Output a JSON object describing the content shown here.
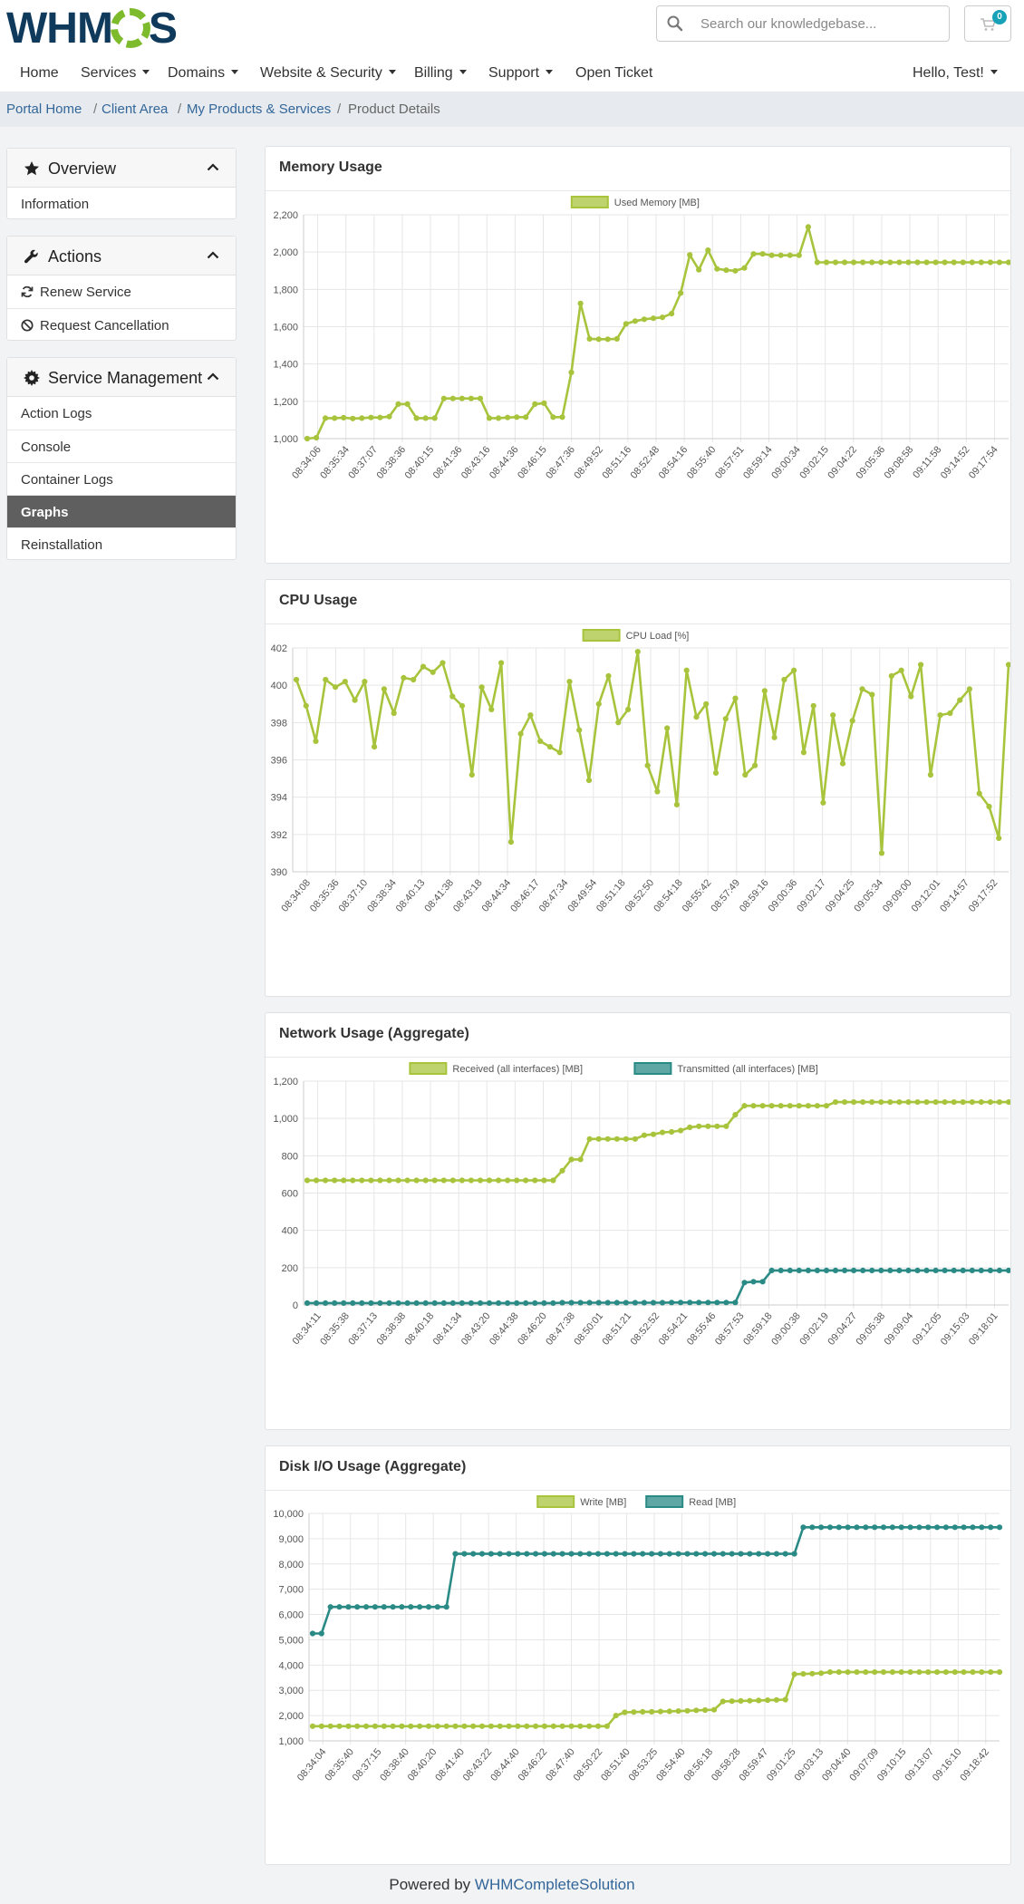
{
  "brand": {
    "logo_left": "WHM",
    "logo_right": "S"
  },
  "search": {
    "placeholder": "Search our knowledgebase..."
  },
  "cart": {
    "count": "0"
  },
  "nav": {
    "items": [
      "Home",
      "Services",
      "Domains",
      "Website & Security",
      "Billing",
      "Support",
      "Open Ticket"
    ],
    "user": "Hello, Test!"
  },
  "breadcrumb": [
    "Portal Home",
    "Client Area",
    "My Products & Services",
    "Product Details"
  ],
  "sidebar": {
    "overview": {
      "title": "Overview",
      "items": [
        "Information"
      ]
    },
    "actions": {
      "title": "Actions",
      "items": [
        "Renew Service",
        "Request Cancellation"
      ]
    },
    "service_management": {
      "title": "Service Management",
      "items": [
        "Action Logs",
        "Console",
        "Container Logs",
        "Graphs",
        "Reinstallation"
      ],
      "active": "Graphs"
    }
  },
  "colors": {
    "green": "#a8c43c",
    "teal": "#2a8a85",
    "link": "#336699"
  },
  "chart_data": [
    {
      "type": "line",
      "title": "Memory Usage",
      "ylim": [
        1000,
        2200
      ],
      "yticks": [
        "1,000",
        "1,200",
        "1,400",
        "1,600",
        "1,800",
        "2,000",
        "2,200"
      ],
      "xticks": [
        "08:34:06",
        "08:35:34",
        "08:37:07",
        "08:38:36",
        "08:40:15",
        "08:41:36",
        "08:43:16",
        "08:44:36",
        "08:46:15",
        "08:47:36",
        "08:49:52",
        "08:51:16",
        "08:52:48",
        "08:54:16",
        "08:55:40",
        "08:57:51",
        "08:59:14",
        "09:00:34",
        "09:02:15",
        "09:04:22",
        "09:05:36",
        "09:08:58",
        "09:11:58",
        "09:14:52",
        "09:17:54"
      ],
      "series": [
        {
          "name": "Used Memory [MB]",
          "color": "#a8c43c",
          "values": [
            1000,
            1005,
            1110,
            1110,
            1112,
            1108,
            1110,
            1113,
            1113,
            1118,
            1185,
            1185,
            1110,
            1110,
            1110,
            1215,
            1215,
            1215,
            1215,
            1215,
            1110,
            1110,
            1113,
            1115,
            1115,
            1185,
            1190,
            1115,
            1115,
            1355,
            1725,
            1535,
            1533,
            1533,
            1535,
            1615,
            1630,
            1640,
            1645,
            1650,
            1670,
            1780,
            1985,
            1905,
            2010,
            1910,
            1903,
            1900,
            1915,
            1990,
            1990,
            1983,
            1983,
            1983,
            1983,
            2135,
            1945,
            1945,
            1945,
            1945,
            1945,
            1945,
            1945,
            1945,
            1945,
            1945,
            1945,
            1945,
            1945,
            1945,
            1945,
            1945,
            1945,
            1945,
            1945,
            1945,
            1945,
            1945
          ]
        }
      ]
    },
    {
      "type": "line",
      "title": "CPU Usage",
      "ylim": [
        390,
        402
      ],
      "yticks": [
        "390",
        "392",
        "394",
        "396",
        "398",
        "400",
        "402"
      ],
      "xticks": [
        "08:34:08",
        "08:35:36",
        "08:37:10",
        "08:38:34",
        "08:40:13",
        "08:41:38",
        "08:43:18",
        "08:44:34",
        "08:46:17",
        "08:47:34",
        "08:49:54",
        "08:51:18",
        "08:52:50",
        "08:54:18",
        "08:55:42",
        "08:57:49",
        "08:59:16",
        "09:00:36",
        "09:02:17",
        "09:04:25",
        "09:05:34",
        "09:09:00",
        "09:12:01",
        "09:14:57",
        "09:17:52"
      ],
      "series": [
        {
          "name": "CPU Load [%]",
          "color": "#a8c43c",
          "values": [
            400.3,
            398.9,
            397.0,
            400.3,
            399.9,
            400.2,
            399.2,
            400.2,
            396.7,
            399.8,
            398.5,
            400.4,
            400.3,
            401.0,
            400.7,
            401.2,
            399.4,
            398.9,
            395.2,
            399.9,
            398.7,
            401.2,
            391.6,
            397.4,
            398.4,
            397.0,
            396.7,
            396.4,
            400.2,
            397.6,
            394.9,
            399.0,
            400.5,
            398.0,
            398.7,
            401.8,
            395.7,
            394.3,
            397.7,
            393.6,
            400.8,
            398.3,
            399.0,
            395.3,
            398.2,
            399.3,
            395.2,
            395.7,
            399.7,
            397.2,
            400.3,
            400.8,
            396.4,
            398.9,
            393.7,
            398.4,
            395.8,
            398.1,
            399.8,
            399.5,
            391.0,
            400.5,
            400.8,
            399.4,
            401.1,
            395.2,
            398.4,
            398.5,
            399.2,
            399.8,
            394.2,
            393.5,
            391.8,
            401.1
          ]
        }
      ]
    },
    {
      "type": "line",
      "title": "Network Usage (Aggregate)",
      "ylim": [
        0,
        1200
      ],
      "yticks": [
        "0",
        "200",
        "400",
        "600",
        "800",
        "1,000",
        "1,200"
      ],
      "xticks": [
        "08:34:11",
        "08:35:38",
        "08:37:13",
        "08:38:38",
        "08:40:18",
        "08:41:34",
        "08:43:20",
        "08:44:38",
        "08:46:20",
        "08:47:38",
        "08:50:01",
        "08:51:21",
        "08:52:52",
        "08:54:21",
        "08:55:46",
        "08:57:53",
        "08:59:18",
        "09:00:38",
        "09:02:19",
        "09:04:27",
        "09:05:38",
        "09:09:04",
        "09:12:05",
        "09:15:03",
        "09:18:01"
      ],
      "series": [
        {
          "name": "Received (all interfaces) [MB]",
          "color": "#a8c43c",
          "values": [
            668,
            668,
            668,
            668,
            668,
            668,
            668,
            668,
            668,
            668,
            668,
            668,
            668,
            668,
            668,
            668,
            668,
            668,
            668,
            668,
            668,
            668,
            668,
            668,
            668,
            668,
            668,
            668,
            720,
            780,
            780,
            890,
            890,
            890,
            890,
            890,
            890,
            910,
            915,
            925,
            928,
            935,
            952,
            958,
            958,
            958,
            958,
            1020,
            1068,
            1068,
            1068,
            1068,
            1068,
            1068,
            1068,
            1068,
            1068,
            1068,
            1088,
            1088,
            1088,
            1088,
            1088,
            1088,
            1088,
            1088,
            1088,
            1088,
            1088,
            1088,
            1088,
            1088,
            1088,
            1088,
            1088,
            1088,
            1088,
            1088
          ]
        },
        {
          "name": "Transmitted (all interfaces) [MB]",
          "color": "#2a8a85",
          "values": [
            10,
            10,
            10,
            10,
            10,
            10,
            10,
            10,
            10,
            10,
            10,
            10,
            10,
            10,
            10,
            10,
            10,
            10,
            10,
            10,
            10,
            10,
            10,
            10,
            10,
            10,
            10,
            10,
            12,
            12,
            12,
            12,
            12,
            12,
            12,
            12,
            12,
            12,
            12,
            12,
            13,
            13,
            13,
            13,
            13,
            13,
            13,
            13,
            120,
            125,
            125,
            185,
            185,
            185,
            185,
            185,
            185,
            185,
            185,
            185,
            185,
            185,
            185,
            185,
            185,
            185,
            185,
            185,
            185,
            185,
            185,
            185,
            185,
            185,
            185,
            185,
            185,
            185
          ]
        }
      ]
    },
    {
      "type": "line",
      "title": "Disk I/O Usage (Aggregate)",
      "ylim": [
        1000,
        10000
      ],
      "yticks": [
        "1,000",
        "2,000",
        "3,000",
        "4,000",
        "5,000",
        "6,000",
        "7,000",
        "8,000",
        "9,000",
        "10,000"
      ],
      "xticks": [
        "08:34:04",
        "08:35:40",
        "08:37:15",
        "08:38:40",
        "08:40:20",
        "08:41:40",
        "08:43:22",
        "08:44:40",
        "08:46:22",
        "08:47:40",
        "08:50:22",
        "08:51:40",
        "08:53:25",
        "08:54:40",
        "08:56:18",
        "08:58:28",
        "08:59:47",
        "09:01:25",
        "09:03:13",
        "09:04:40",
        "09:07:09",
        "09:10:15",
        "09:13:07",
        "09:16:10",
        "09:18:42"
      ],
      "series": [
        {
          "name": "Write [MB]",
          "color": "#a8c43c",
          "values": [
            1580,
            1580,
            1580,
            1580,
            1580,
            1580,
            1580,
            1580,
            1580,
            1580,
            1580,
            1580,
            1580,
            1580,
            1580,
            1580,
            1580,
            1580,
            1580,
            1580,
            1580,
            1580,
            1580,
            1580,
            1580,
            1580,
            1580,
            1580,
            1580,
            1580,
            1580,
            1580,
            1580,
            1580,
            2000,
            2130,
            2140,
            2150,
            2150,
            2160,
            2170,
            2180,
            2190,
            2210,
            2220,
            2230,
            2560,
            2570,
            2580,
            2590,
            2600,
            2610,
            2620,
            2630,
            3640,
            3650,
            3660,
            3680,
            3720,
            3720,
            3720,
            3720,
            3720,
            3720,
            3720,
            3720,
            3720,
            3720,
            3720,
            3720,
            3720,
            3720,
            3720,
            3720,
            3720,
            3720,
            3720,
            3720
          ]
        },
        {
          "name": "Read [MB]",
          "color": "#2a8a85",
          "values": [
            5250,
            5250,
            6300,
            6300,
            6300,
            6300,
            6300,
            6300,
            6300,
            6300,
            6300,
            6300,
            6300,
            6300,
            6300,
            6300,
            8400,
            8400,
            8400,
            8400,
            8400,
            8400,
            8400,
            8400,
            8400,
            8400,
            8400,
            8400,
            8400,
            8400,
            8400,
            8400,
            8400,
            8400,
            8400,
            8400,
            8400,
            8400,
            8400,
            8400,
            8400,
            8400,
            8400,
            8400,
            8400,
            8400,
            8400,
            8400,
            8400,
            8400,
            8400,
            8400,
            8400,
            8400,
            8400,
            9450,
            9450,
            9450,
            9450,
            9450,
            9450,
            9450,
            9450,
            9450,
            9450,
            9450,
            9450,
            9450,
            9450,
            9450,
            9450,
            9450,
            9450,
            9450,
            9450,
            9450,
            9450,
            9450
          ]
        }
      ]
    }
  ],
  "footer": {
    "text": "Powered by",
    "link": "WHMCompleteSolution"
  }
}
